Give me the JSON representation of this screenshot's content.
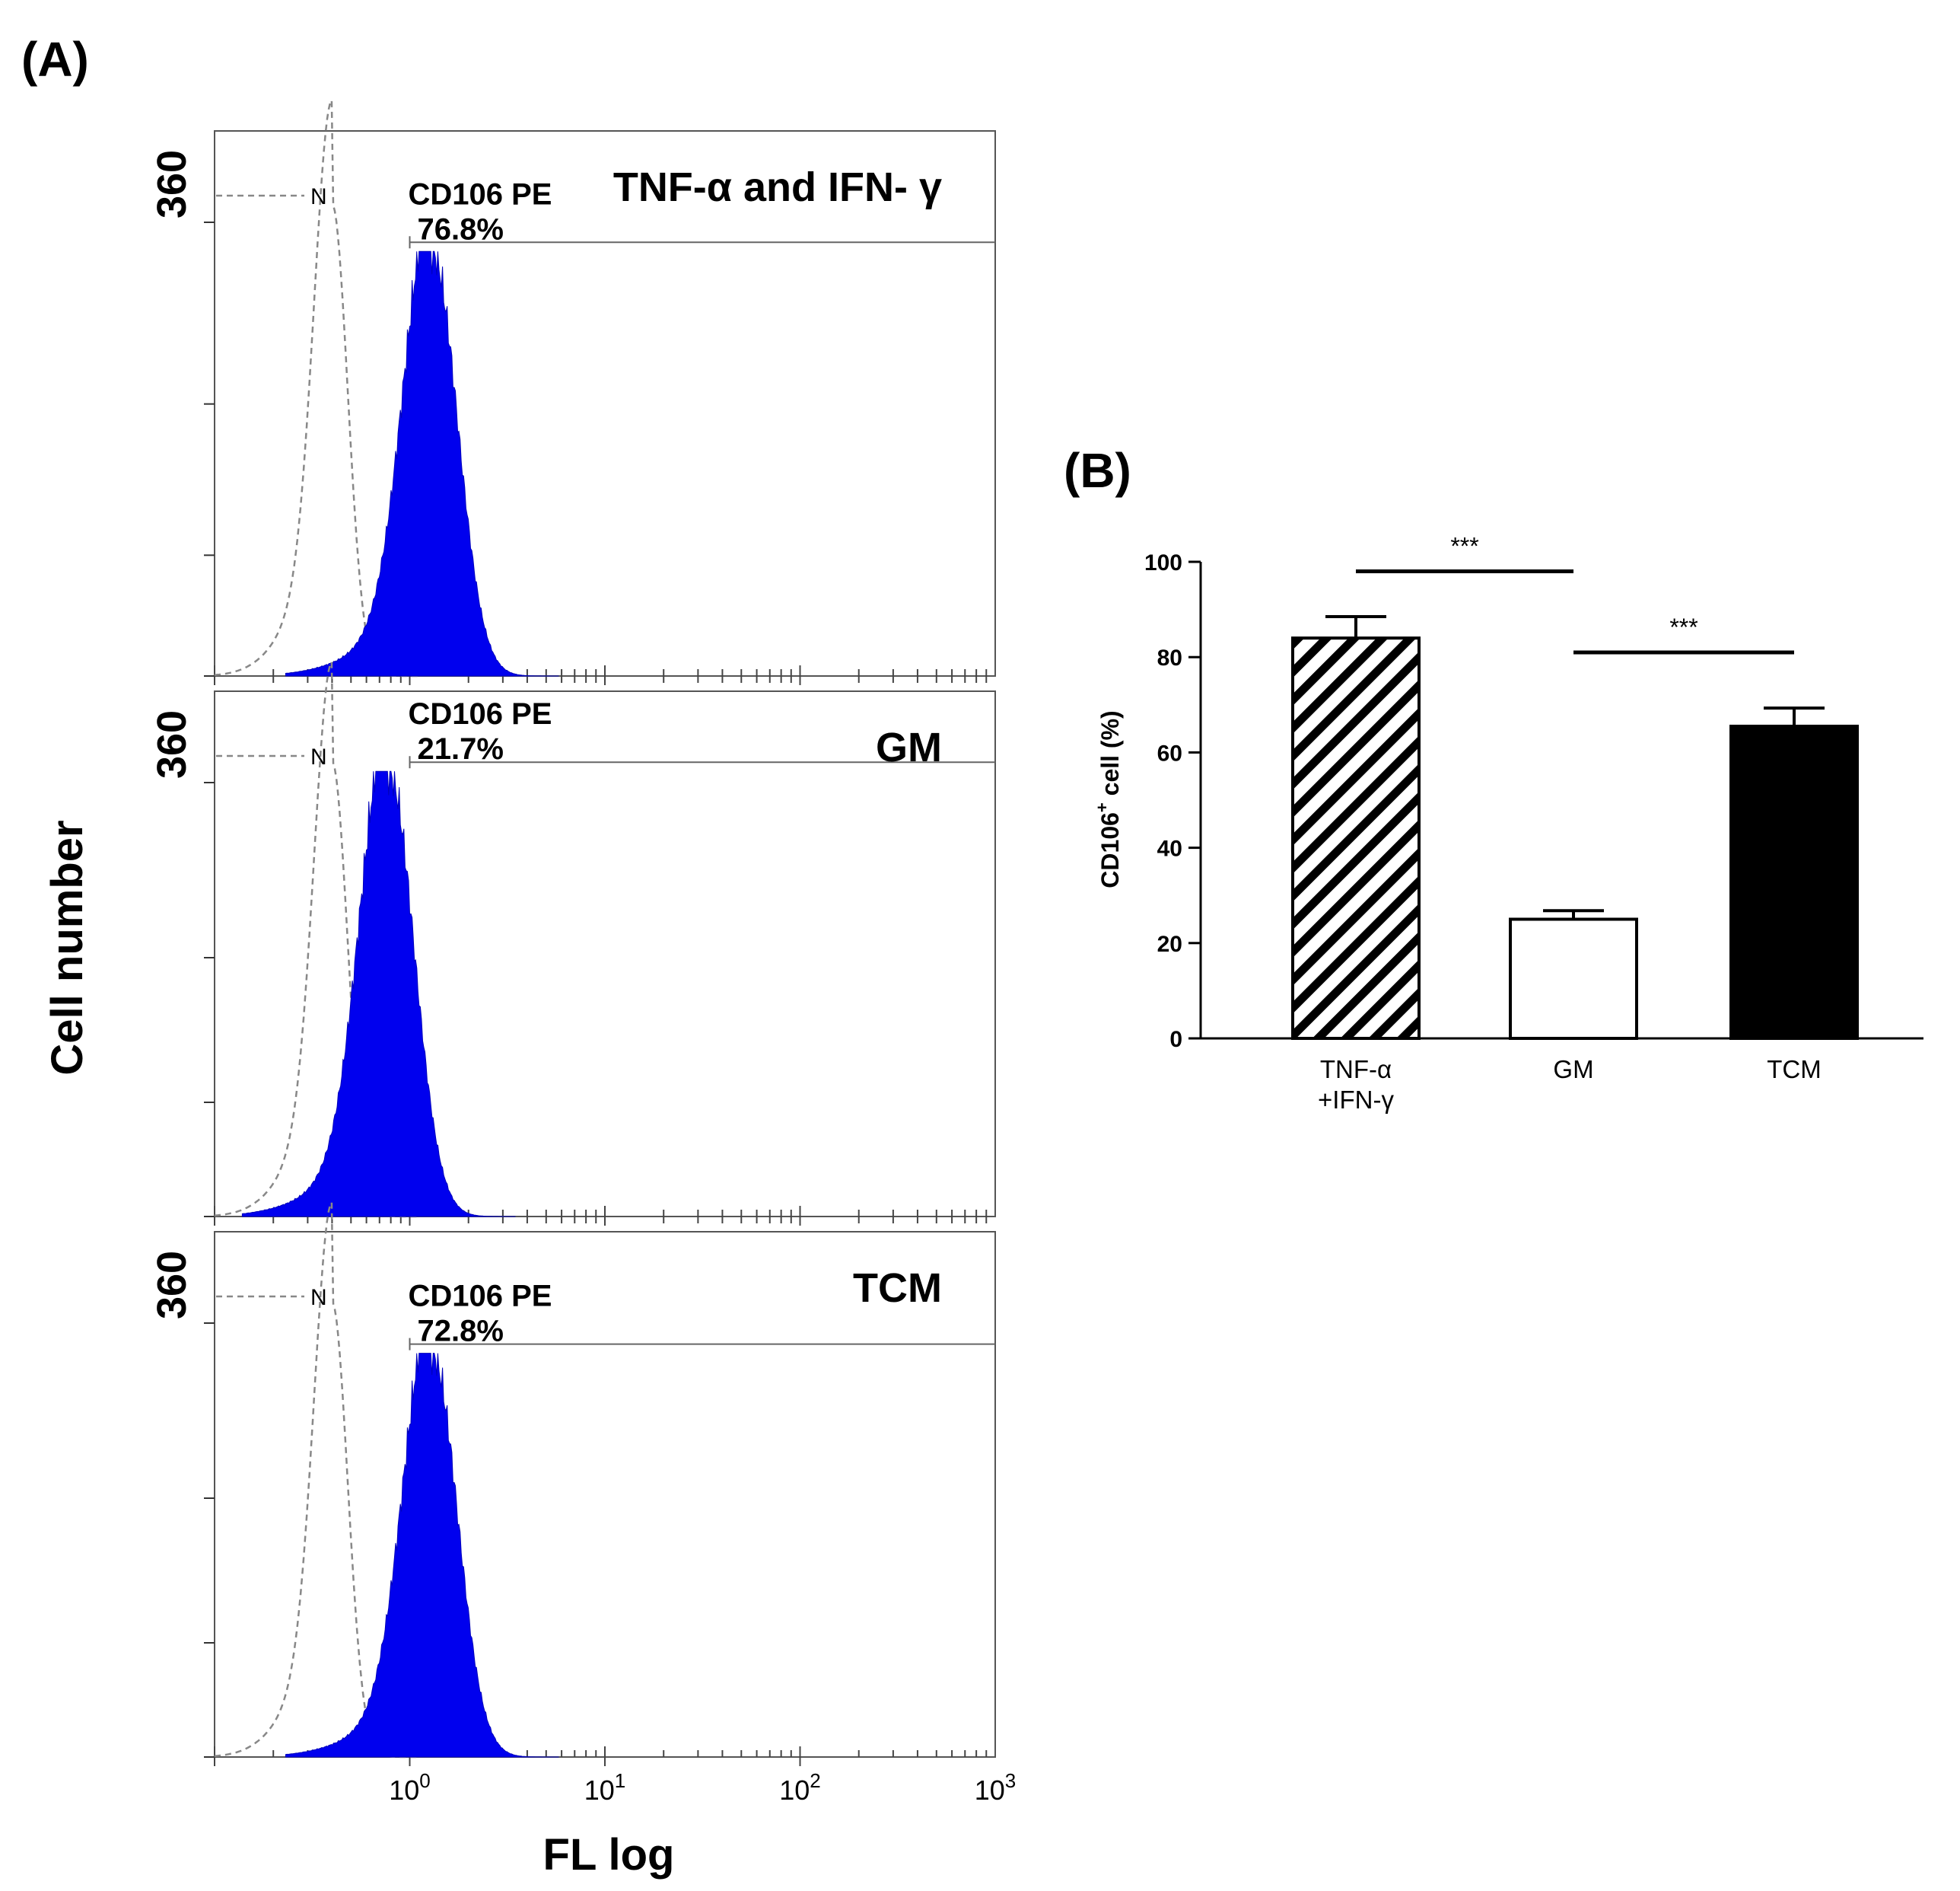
{
  "panels": {
    "a_label": "(A)",
    "b_label": "(B)"
  },
  "histograms": {
    "ylabel": "Cell number",
    "xlabel": "FL log",
    "y_tick_label": "360",
    "x_ticks": [
      {
        "base": "10",
        "exp": "0"
      },
      {
        "base": "10",
        "exp": "1"
      },
      {
        "base": "10",
        "exp": "2"
      },
      {
        "base": "10",
        "exp": "3"
      }
    ],
    "negative_label": "N",
    "marker_name": "CD106 PE",
    "colors": {
      "stained": "#0000ee",
      "negative": "#888888"
    }
  },
  "chart_data": [
    {
      "type": "area",
      "panel": "A",
      "x_scale": "log",
      "xlim": [
        0.1,
        1000
      ],
      "series": [
        {
          "title": "TNF-α and  IFN- γ",
          "gate_percent": "76.8%",
          "peak_fl": 1.3,
          "peak_relative_height": 0.79,
          "negative_peak_fl": 0.4
        },
        {
          "title": "GM",
          "gate_percent": "21.7%",
          "peak_fl": 0.78,
          "peak_relative_height": 0.86,
          "negative_peak_fl": 0.4
        },
        {
          "title": "TCM",
          "gate_percent": "72.8%",
          "peak_fl": 1.3,
          "peak_relative_height": 0.78,
          "negative_peak_fl": 0.4
        }
      ]
    },
    {
      "type": "bar",
      "panel": "B",
      "categories": [
        {
          "line1": "TNF-α",
          "line2": "+IFN-γ"
        },
        {
          "line1": "GM",
          "line2": ""
        },
        {
          "line1": "TCM",
          "line2": ""
        }
      ],
      "values": [
        84,
        25,
        65.5
      ],
      "errors": [
        4.5,
        1.8,
        3.8
      ],
      "fills": [
        "hatched",
        "white",
        "black"
      ],
      "ylabel": {
        "main": "CD106",
        "sup": "+",
        "rest": " cell (%)"
      },
      "ylim": [
        0,
        100
      ],
      "yticks": [
        "0",
        "20",
        "40",
        "60",
        "80",
        "100"
      ],
      "significance": [
        {
          "from": 0,
          "to": 1,
          "label": "***",
          "y": 98
        },
        {
          "from": 1,
          "to": 2,
          "label": "***",
          "y": 81
        }
      ]
    }
  ]
}
